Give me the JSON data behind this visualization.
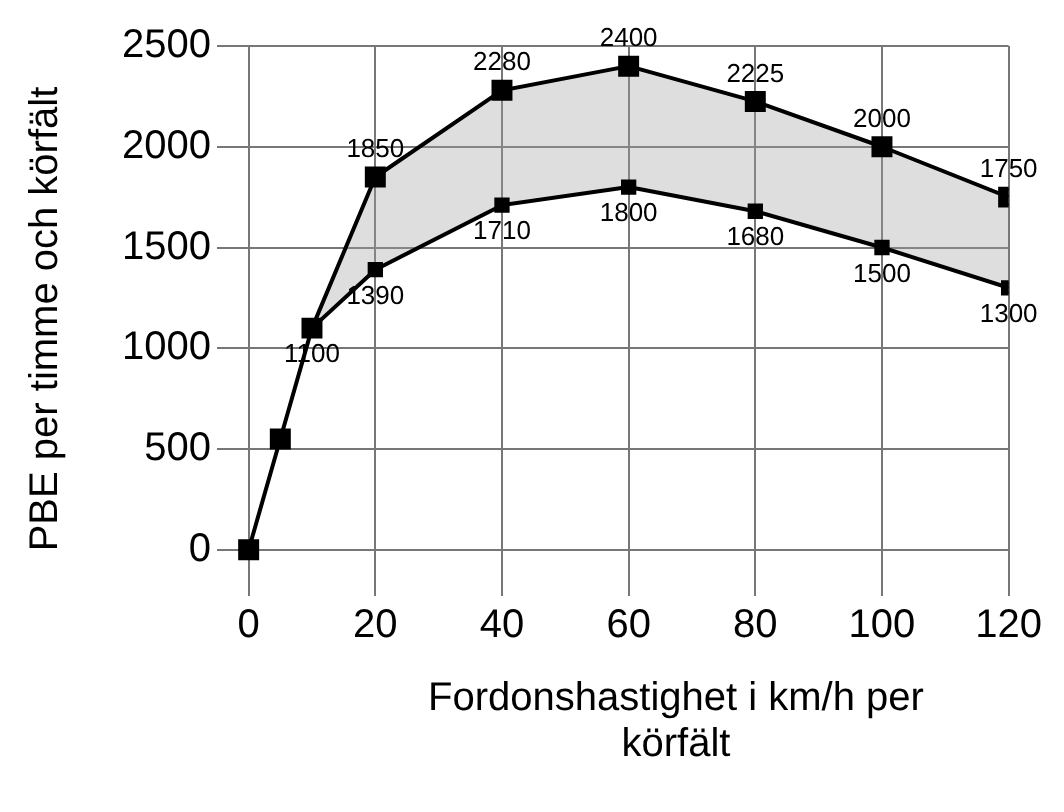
{
  "chart_data": {
    "type": "line",
    "xlabel": "Fordonshastighet i km/h per körfält",
    "ylabel": "PBE per timme och körfält",
    "xlim": [
      -5,
      120
    ],
    "ylim": [
      -150,
      2500
    ],
    "xticks": [
      0,
      20,
      40,
      60,
      80,
      100,
      120
    ],
    "yticks": [
      0,
      500,
      1000,
      1500,
      2000,
      2500
    ],
    "grid": true,
    "marker": "square",
    "line_style": "solid",
    "legend": false,
    "series": [
      {
        "color": "#000000",
        "x": [
          0,
          5,
          10,
          20,
          40,
          60,
          80,
          100,
          120
        ],
        "values": [
          0,
          550,
          1100,
          1850,
          2280,
          2400,
          2225,
          2000,
          1750
        ],
        "value_labels": [
          null,
          null,
          null,
          "1850",
          "2280",
          "2400",
          "2225",
          "2000",
          "1750"
        ]
      },
      {
        "color": "#000000",
        "x": [
          10,
          20,
          40,
          60,
          80,
          100,
          120
        ],
        "values": [
          1100,
          1390,
          1710,
          1800,
          1680,
          1500,
          1300
        ],
        "value_labels": [
          "1100",
          "1390",
          "1710",
          "1800",
          "1680",
          "1500",
          "1300"
        ]
      }
    ]
  }
}
